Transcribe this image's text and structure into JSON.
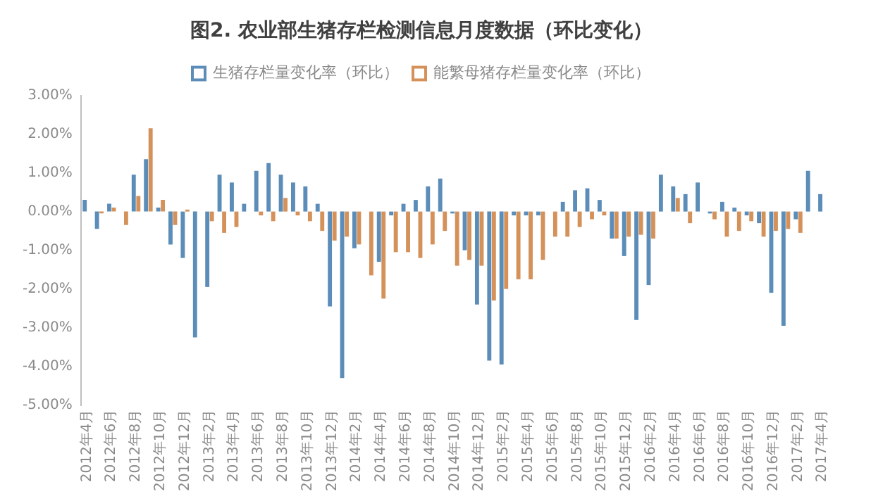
{
  "chart_data": {
    "type": "bar",
    "title": "图2. 农业部生猪存栏检测信息月度数据（环比变化）",
    "categories": [
      "2012年4月",
      null,
      "2012年6月",
      null,
      "2012年8月",
      null,
      "2012年10月",
      null,
      "2012年12月",
      null,
      "2013年2月",
      null,
      "2013年4月",
      null,
      "2013年6月",
      null,
      "2013年8月",
      null,
      "2013年10月",
      null,
      "2013年12月",
      null,
      "2014年2月",
      null,
      "2014年4月",
      null,
      "2014年6月",
      null,
      "2014年8月",
      null,
      "2014年10月",
      null,
      "2014年12月",
      null,
      "2015年2月",
      null,
      "2015年4月",
      null,
      "2015年6月",
      null,
      "2015年8月",
      null,
      "2015年10月",
      null,
      "2015年12月",
      null,
      "2016年2月",
      null,
      "2016年4月",
      null,
      "2016年6月",
      null,
      "2016年8月",
      null,
      "2016年10月",
      null,
      "2016年12月",
      null,
      "2017年2月",
      null,
      "2017年4月"
    ],
    "series": [
      {
        "name": "生猪存栏量变化率（环比）",
        "color": "#5b8db8",
        "values": [
          0.3,
          -0.45,
          0.2,
          0,
          0.95,
          1.35,
          0.1,
          -0.85,
          -1.2,
          -3.25,
          -1.95,
          0.95,
          0.75,
          0.2,
          1.05,
          1.25,
          0.95,
          0.75,
          0.65,
          0.2,
          -2.45,
          -4.3,
          -0.95,
          0,
          -1.3,
          -0.1,
          0.2,
          0.3,
          0.65,
          0.85,
          -0.05,
          -1.0,
          -2.4,
          -3.85,
          -3.95,
          -0.1,
          -0.1,
          -0.1,
          0,
          0.25,
          0.55,
          0.6,
          0.3,
          -0.7,
          -1.15,
          -2.8,
          -1.9,
          0.95,
          0.65,
          0.45,
          0.75,
          -0.05,
          0.25,
          0.1,
          -0.1,
          -0.3,
          -2.1,
          -2.95,
          -0.2,
          1.05,
          0.45
        ]
      },
      {
        "name": "能繁母猪存栏量变化率（环比）",
        "color": "#d4915a",
        "values": [
          0,
          -0.05,
          0.1,
          -0.35,
          0.4,
          2.15,
          0.3,
          -0.35,
          0.05,
          0,
          -0.25,
          -0.55,
          -0.4,
          0,
          -0.1,
          -0.25,
          0.35,
          -0.1,
          -0.25,
          -0.5,
          -0.75,
          -0.65,
          -0.85,
          -1.65,
          -2.25,
          -1.05,
          -1.05,
          -1.2,
          -0.85,
          -0.5,
          -1.4,
          -1.25,
          -1.4,
          -2.3,
          -2.0,
          -1.75,
          -1.75,
          -1.25,
          -0.65,
          -0.65,
          -0.4,
          -0.2,
          -0.1,
          -0.7,
          -0.65,
          -0.6,
          -0.7,
          0,
          0.35,
          -0.3,
          0,
          -0.2,
          -0.65,
          -0.5,
          -0.25,
          -0.65,
          -0.5,
          -0.45,
          -0.55,
          0,
          null
        ]
      }
    ],
    "ylim": [
      -5,
      3
    ],
    "yticks": [
      {
        "value": -5,
        "label": "-5.00%"
      },
      {
        "value": -4,
        "label": "-4.00%"
      },
      {
        "value": -3,
        "label": "-3.00%"
      },
      {
        "value": -2,
        "label": "-2.00%"
      },
      {
        "value": -1,
        "label": "-1.00%"
      },
      {
        "value": 0,
        "label": "0.00%"
      },
      {
        "value": 1,
        "label": "1.00%"
      },
      {
        "value": 2,
        "label": "2.00%"
      },
      {
        "value": 3,
        "label": "3.00%"
      }
    ],
    "grid": false,
    "legend": "top"
  }
}
